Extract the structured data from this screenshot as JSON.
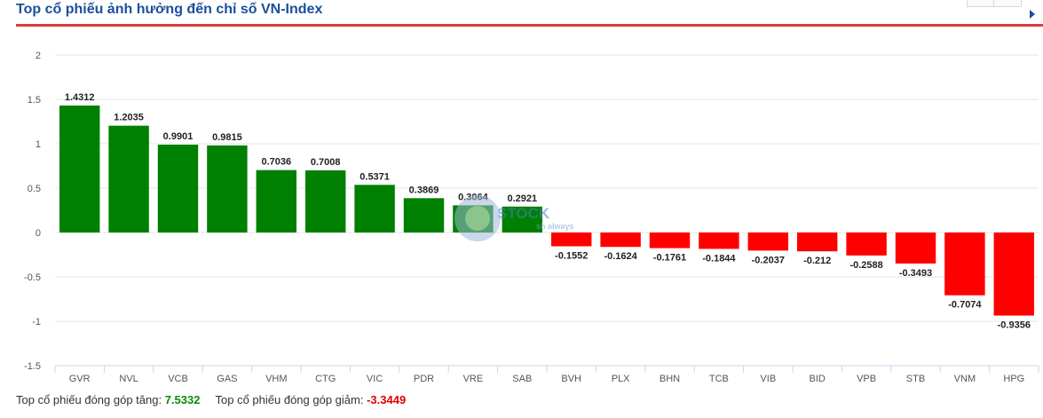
{
  "title": "Top cổ phiếu ảnh hưởng đến chỉ số VN-Index",
  "colors": {
    "positive": "#008000",
    "negative": "#ff0000",
    "title": "#1a4f9c",
    "rule": "#e03b3b"
  },
  "watermark": {
    "text": "STOCK",
    "subtext": "sh always"
  },
  "footer": {
    "up_label": "Top cổ phiếu đóng góp tăng:",
    "up_value": "7.5332",
    "down_label": "Top cổ phiếu đóng góp giảm:",
    "down_value": "-3.3449"
  },
  "chart_data": {
    "type": "bar",
    "categories": [
      "GVR",
      "NVL",
      "VCB",
      "GAS",
      "VHM",
      "CTG",
      "VIC",
      "PDR",
      "VRE",
      "SAB",
      "BVH",
      "PLX",
      "BHN",
      "TCB",
      "VIB",
      "BID",
      "VPB",
      "STB",
      "VNM",
      "HPG"
    ],
    "values": [
      1.4312,
      1.2035,
      0.9901,
      0.9815,
      0.7036,
      0.7008,
      0.5371,
      0.3869,
      0.3064,
      0.2921,
      -0.1552,
      -0.1624,
      -0.1761,
      -0.1844,
      -0.2037,
      -0.212,
      -0.2588,
      -0.3493,
      -0.7074,
      -0.9356
    ],
    "value_labels": [
      "1.4312",
      "1.2035",
      "0.9901",
      "0.9815",
      "0.7036",
      "0.7008",
      "0.5371",
      "0.3869",
      "0.3064",
      "0.2921",
      "-0.1552",
      "-0.1624",
      "-0.1761",
      "-0.1844",
      "-0.2037",
      "-0.212",
      "-0.2588",
      "-0.3493",
      "-0.7074",
      "-0.9356"
    ],
    "y_ticks": [
      "2",
      "1.5",
      "1",
      "0.5",
      "0",
      "-0.5",
      "-1",
      "-1.5"
    ],
    "y_tick_values": [
      2,
      1.5,
      1,
      0.5,
      0,
      -0.5,
      -1,
      -1.5
    ],
    "ylim": [
      -1.5,
      2
    ],
    "grid": true,
    "legend": "none"
  }
}
